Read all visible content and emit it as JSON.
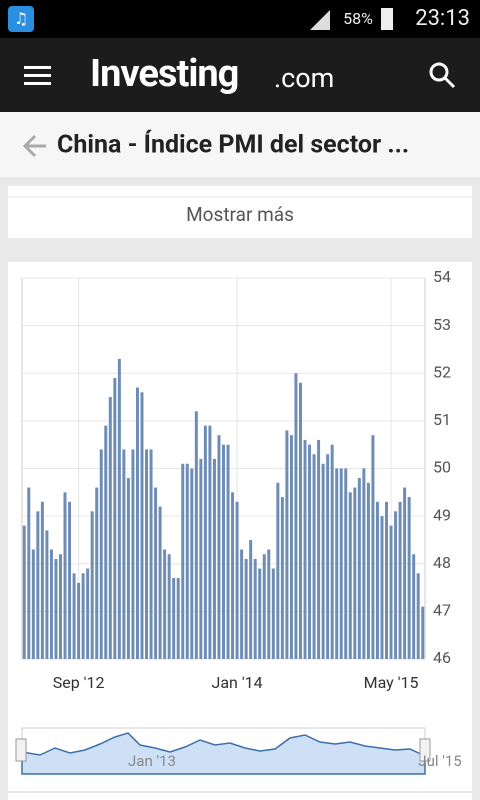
{
  "status_bar": {
    "battery": "58%",
    "time": "23:13"
  },
  "header": {
    "brand": "Investing",
    "brand_suffix": ".com"
  },
  "page_title": "China - Índice PMI del sector ...",
  "show_more": "Mostrar más",
  "chart_data": {
    "type": "bar",
    "color": "#6e8db5",
    "values": [
      48.8,
      49.6,
      48.3,
      49.1,
      49.3,
      48.7,
      48.3,
      48.1,
      48.2,
      49.5,
      49.3,
      47.8,
      47.6,
      47.8,
      47.9,
      49.1,
      49.6,
      50.4,
      50.9,
      51.5,
      51.9,
      52.3,
      50.4,
      49.8,
      50.4,
      51.7,
      51.6,
      50.4,
      50.4,
      49.6,
      49.2,
      48.3,
      48.2,
      47.7,
      47.7,
      50.1,
      50.1,
      50.0,
      51.2,
      50.2,
      50.9,
      50.9,
      50.2,
      50.7,
      50.5,
      50.5,
      49.5,
      49.3,
      48.3,
      48.1,
      48.5,
      48.1,
      47.9,
      48.2,
      48.3,
      47.9,
      49.7,
      49.4,
      50.8,
      50.7,
      52.0,
      51.8,
      50.6,
      50.5,
      50.3,
      50.6,
      50.1,
      50.3,
      50.5,
      50.0,
      50.0,
      50.0,
      49.5,
      49.6,
      49.8,
      50.0,
      49.7,
      50.7,
      49.3,
      49.0,
      49.3,
      48.8,
      49.1,
      49.3,
      49.6,
      49.4,
      48.2,
      47.8,
      47.1
    ],
    "ylim": [
      46,
      54
    ],
    "yticks": [
      46,
      47,
      48,
      49,
      50,
      51,
      52,
      53,
      54
    ],
    "xticks": [
      {
        "value": 12,
        "label": "Sep '12"
      },
      {
        "value": 47,
        "label": "Jan '14"
      },
      {
        "value": 81,
        "label": "May '15"
      }
    ],
    "grid": true,
    "navigator_labels": [
      "Jan '13",
      "Jul '15"
    ]
  }
}
